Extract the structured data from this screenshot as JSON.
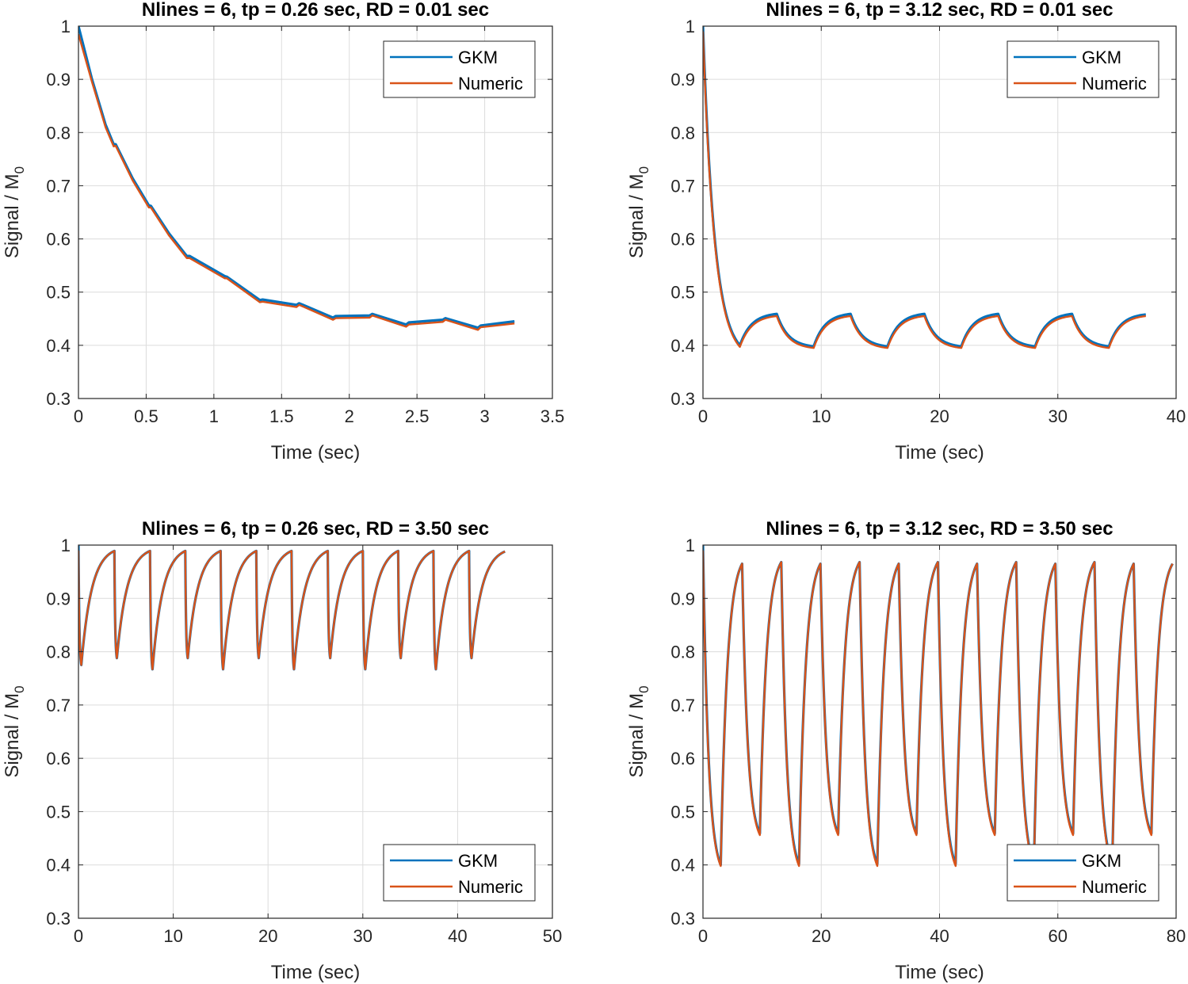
{
  "chart_data": [
    {
      "type": "line",
      "title": "Nlines = 6, tp = 0.26 sec, RD = 0.01 sec",
      "xlabel": "Time (sec)",
      "ylabel": "Signal / M",
      "ylabel_sub": "0",
      "xlim": [
        0,
        3.5
      ],
      "ylim": [
        0.3,
        1
      ],
      "xticks": [
        0,
        0.5,
        1,
        1.5,
        2,
        2.5,
        3,
        3.5
      ],
      "xtick_labels": [
        "0",
        "0.5",
        "1",
        "1.5",
        "2",
        "2.5",
        "3",
        "3.5"
      ],
      "yticks": [
        0.3,
        0.4,
        0.5,
        0.6,
        0.7,
        0.8,
        0.9,
        1
      ],
      "ytick_labels": [
        "0.3",
        "0.4",
        "0.5",
        "0.6",
        "0.7",
        "0.8",
        "0.9",
        "1"
      ],
      "grid": true,
      "legend": "top-right",
      "interpolation": "linear",
      "series": [
        {
          "name": "GKM",
          "color": "#0072BD",
          "points": [
            [
              0,
              1.0
            ],
            [
              0.1,
              0.9
            ],
            [
              0.2,
              0.815
            ],
            [
              0.26,
              0.778
            ],
            [
              0.275,
              0.778
            ],
            [
              0.4,
              0.714
            ],
            [
              0.52,
              0.663
            ],
            [
              0.535,
              0.662
            ],
            [
              0.67,
              0.61
            ],
            [
              0.8,
              0.568
            ],
            [
              0.82,
              0.568
            ],
            [
              1.08,
              0.53
            ],
            [
              1.095,
              0.529
            ],
            [
              1.34,
              0.485
            ],
            [
              1.36,
              0.486
            ],
            [
              1.61,
              0.476
            ],
            [
              1.63,
              0.479
            ],
            [
              1.88,
              0.452
            ],
            [
              1.9,
              0.455
            ],
            [
              2.15,
              0.456
            ],
            [
              2.17,
              0.459
            ],
            [
              2.42,
              0.439
            ],
            [
              2.44,
              0.443
            ],
            [
              2.69,
              0.448
            ],
            [
              2.71,
              0.451
            ],
            [
              2.95,
              0.433
            ],
            [
              2.97,
              0.437
            ],
            [
              3.22,
              0.445
            ]
          ]
        },
        {
          "name": "Numeric",
          "color": "#D95319",
          "points": [
            [
              0,
              0.985
            ],
            [
              0.1,
              0.895
            ],
            [
              0.2,
              0.81
            ],
            [
              0.26,
              0.774
            ],
            [
              0.275,
              0.775
            ],
            [
              0.4,
              0.71
            ],
            [
              0.52,
              0.659
            ],
            [
              0.535,
              0.659
            ],
            [
              0.67,
              0.606
            ],
            [
              0.8,
              0.564
            ],
            [
              0.82,
              0.564
            ],
            [
              1.08,
              0.526
            ],
            [
              1.095,
              0.526
            ],
            [
              1.34,
              0.481
            ],
            [
              1.36,
              0.482
            ],
            [
              1.61,
              0.472
            ],
            [
              1.63,
              0.476
            ],
            [
              1.88,
              0.448
            ],
            [
              1.9,
              0.451
            ],
            [
              2.15,
              0.452
            ],
            [
              2.17,
              0.456
            ],
            [
              2.42,
              0.435
            ],
            [
              2.44,
              0.439
            ],
            [
              2.69,
              0.444
            ],
            [
              2.71,
              0.448
            ],
            [
              2.95,
              0.429
            ],
            [
              2.97,
              0.434
            ],
            [
              3.22,
              0.441
            ]
          ]
        }
      ]
    },
    {
      "type": "line",
      "title": "Nlines = 6, tp = 3.12 sec, RD = 0.01 sec",
      "xlabel": "Time (sec)",
      "ylabel": "Signal / M",
      "ylabel_sub": "0",
      "xlim": [
        0,
        40
      ],
      "ylim": [
        0.3,
        1
      ],
      "xticks": [
        0,
        10,
        20,
        30,
        40
      ],
      "xtick_labels": [
        "0",
        "10",
        "20",
        "30",
        "40"
      ],
      "yticks": [
        0.3,
        0.4,
        0.5,
        0.6,
        0.7,
        0.8,
        0.9,
        1
      ],
      "ytick_labels": [
        "0.3",
        "0.4",
        "0.5",
        "0.6",
        "0.7",
        "0.8",
        "0.9",
        "1"
      ],
      "grid": true,
      "legend": "top-right",
      "interpolation": "exponential",
      "series": [
        {
          "name": "GKM",
          "color": "#0072BD",
          "points": [
            [
              0,
              1.0
            ],
            [
              3.12,
              0.4
            ],
            [
              6.24,
              0.459
            ],
            [
              9.36,
              0.398
            ],
            [
              12.48,
              0.459
            ],
            [
              15.6,
              0.398
            ],
            [
              18.72,
              0.459
            ],
            [
              21.84,
              0.398
            ],
            [
              24.96,
              0.459
            ],
            [
              28.08,
              0.398
            ],
            [
              31.2,
              0.459
            ],
            [
              34.32,
              0.398
            ],
            [
              37.44,
              0.458
            ]
          ]
        },
        {
          "name": "Numeric",
          "color": "#D95319",
          "points": [
            [
              0,
              0.99
            ],
            [
              3.12,
              0.397
            ],
            [
              6.24,
              0.455
            ],
            [
              9.36,
              0.395
            ],
            [
              12.48,
              0.455
            ],
            [
              15.6,
              0.395
            ],
            [
              18.72,
              0.455
            ],
            [
              21.84,
              0.395
            ],
            [
              24.96,
              0.455
            ],
            [
              28.08,
              0.395
            ],
            [
              31.2,
              0.455
            ],
            [
              34.32,
              0.395
            ],
            [
              37.44,
              0.455
            ]
          ]
        }
      ]
    },
    {
      "type": "line",
      "title": "Nlines = 6, tp = 0.26 sec, RD = 3.50 sec",
      "xlabel": "Time (sec)",
      "ylabel": "Signal / M",
      "ylabel_sub": "0",
      "xlim": [
        0,
        50
      ],
      "ylim": [
        0.3,
        1
      ],
      "xticks": [
        0,
        10,
        20,
        30,
        40,
        50
      ],
      "xtick_labels": [
        "0",
        "10",
        "20",
        "30",
        "40",
        "50"
      ],
      "yticks": [
        0.3,
        0.4,
        0.5,
        0.6,
        0.7,
        0.8,
        0.9,
        1
      ],
      "ytick_labels": [
        "0.3",
        "0.4",
        "0.5",
        "0.6",
        "0.7",
        "0.8",
        "0.9",
        "1"
      ],
      "grid": true,
      "legend": "bottom-right",
      "interpolation": "exponential",
      "series": [
        {
          "name": "GKM",
          "color": "#0072BD",
          "points": [
            [
              0,
              1.0
            ],
            [
              0.3,
              0.775
            ],
            [
              3.79,
              0.989
            ],
            [
              4.05,
              0.788
            ],
            [
              7.55,
              0.989
            ],
            [
              7.81,
              0.767
            ],
            [
              11.27,
              0.989
            ],
            [
              11.53,
              0.788
            ],
            [
              15.0,
              0.989
            ],
            [
              15.26,
              0.767
            ],
            [
              18.76,
              0.989
            ],
            [
              19.02,
              0.788
            ],
            [
              22.48,
              0.989
            ],
            [
              22.74,
              0.767
            ],
            [
              26.3,
              0.989
            ],
            [
              26.56,
              0.788
            ],
            [
              30.0,
              0.989
            ],
            [
              30.26,
              0.767
            ],
            [
              33.73,
              0.989
            ],
            [
              34.0,
              0.788
            ],
            [
              37.45,
              0.989
            ],
            [
              37.71,
              0.767
            ],
            [
              41.21,
              0.989
            ],
            [
              41.47,
              0.788
            ],
            [
              45.0,
              0.988
            ]
          ]
        },
        {
          "name": "Numeric",
          "color": "#D95319",
          "points": [
            [
              0,
              0.99
            ],
            [
              0.3,
              0.775
            ],
            [
              3.79,
              0.989
            ],
            [
              4.05,
              0.788
            ],
            [
              7.55,
              0.989
            ],
            [
              7.81,
              0.767
            ],
            [
              11.27,
              0.989
            ],
            [
              11.53,
              0.788
            ],
            [
              15.0,
              0.989
            ],
            [
              15.26,
              0.767
            ],
            [
              18.76,
              0.989
            ],
            [
              19.02,
              0.788
            ],
            [
              22.48,
              0.989
            ],
            [
              22.74,
              0.767
            ],
            [
              26.3,
              0.989
            ],
            [
              26.56,
              0.788
            ],
            [
              30.0,
              0.989
            ],
            [
              30.26,
              0.767
            ],
            [
              33.73,
              0.989
            ],
            [
              34.0,
              0.788
            ],
            [
              37.45,
              0.989
            ],
            [
              37.71,
              0.767
            ],
            [
              41.21,
              0.989
            ],
            [
              41.47,
              0.788
            ],
            [
              45.0,
              0.988
            ]
          ]
        }
      ]
    },
    {
      "type": "line",
      "title": "Nlines = 6, tp = 3.12 sec, RD = 3.50 sec",
      "xlabel": "Time (sec)",
      "ylabel": "Signal / M",
      "ylabel_sub": "0",
      "xlim": [
        0,
        80
      ],
      "ylim": [
        0.3,
        1
      ],
      "xticks": [
        0,
        20,
        40,
        60,
        80
      ],
      "xtick_labels": [
        "0",
        "20",
        "40",
        "60",
        "80"
      ],
      "yticks": [
        0.3,
        0.4,
        0.5,
        0.6,
        0.7,
        0.8,
        0.9,
        1
      ],
      "ytick_labels": [
        "0.3",
        "0.4",
        "0.5",
        "0.6",
        "0.7",
        "0.8",
        "0.9",
        "1"
      ],
      "grid": true,
      "legend": "bottom-right",
      "interpolation": "exponential",
      "series": [
        {
          "name": "GKM",
          "color": "#0072BD",
          "points": [
            [
              0,
              1.0
            ],
            [
              3.0,
              0.4
            ],
            [
              6.62,
              0.965
            ],
            [
              9.62,
              0.459
            ],
            [
              13.24,
              0.968
            ],
            [
              16.24,
              0.402
            ],
            [
              19.86,
              0.965
            ],
            [
              22.86,
              0.459
            ],
            [
              26.48,
              0.968
            ],
            [
              29.48,
              0.402
            ],
            [
              33.1,
              0.965
            ],
            [
              36.1,
              0.459
            ],
            [
              39.72,
              0.968
            ],
            [
              42.72,
              0.402
            ],
            [
              46.34,
              0.965
            ],
            [
              49.34,
              0.459
            ],
            [
              52.96,
              0.968
            ],
            [
              55.96,
              0.402
            ],
            [
              59.58,
              0.965
            ],
            [
              62.58,
              0.459
            ],
            [
              66.2,
              0.968
            ],
            [
              69.2,
              0.402
            ],
            [
              72.82,
              0.965
            ],
            [
              75.82,
              0.459
            ],
            [
              79.4,
              0.965
            ]
          ]
        },
        {
          "name": "Numeric",
          "color": "#D95319",
          "points": [
            [
              0,
              0.99
            ],
            [
              3.0,
              0.398
            ],
            [
              6.62,
              0.965
            ],
            [
              9.62,
              0.456
            ],
            [
              13.24,
              0.968
            ],
            [
              16.24,
              0.398
            ],
            [
              19.86,
              0.965
            ],
            [
              22.86,
              0.456
            ],
            [
              26.48,
              0.968
            ],
            [
              29.48,
              0.398
            ],
            [
              33.1,
              0.965
            ],
            [
              36.1,
              0.456
            ],
            [
              39.72,
              0.968
            ],
            [
              42.72,
              0.398
            ],
            [
              46.34,
              0.965
            ],
            [
              49.34,
              0.456
            ],
            [
              52.96,
              0.968
            ],
            [
              55.96,
              0.398
            ],
            [
              59.58,
              0.965
            ],
            [
              62.58,
              0.456
            ],
            [
              66.2,
              0.968
            ],
            [
              69.2,
              0.398
            ],
            [
              72.82,
              0.965
            ],
            [
              75.82,
              0.456
            ],
            [
              79.4,
              0.965
            ]
          ]
        }
      ]
    }
  ]
}
